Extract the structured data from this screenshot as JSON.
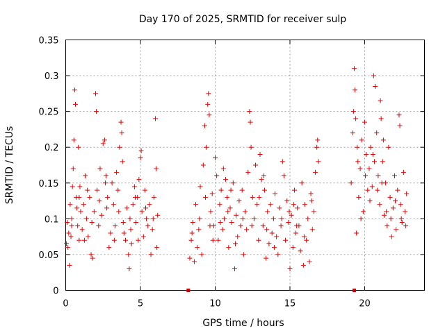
{
  "chart_data": {
    "type": "scatter",
    "title": "Day 170 of 2025, SRMTID for receiver sulp",
    "xlabel": "GPS time / hours",
    "ylabel": "SRMTID / TECUs",
    "xlim": [
      0,
      24
    ],
    "ylim": [
      0,
      0.35
    ],
    "x_ticks": [
      0,
      5,
      10,
      15,
      20
    ],
    "x_tick_labels": [
      "0",
      "5",
      "10",
      "15",
      "20"
    ],
    "y_ticks": [
      0,
      0.05,
      0.1,
      0.15,
      0.2,
      0.25,
      0.3,
      0.35
    ],
    "y_tick_labels": [
      "0",
      "0.05",
      "0.1",
      "0.15",
      "0.2",
      "0.25",
      "0.3",
      "0.35"
    ],
    "grid": true,
    "marker": "+",
    "color": "#e00000",
    "data_gap_markers_x": [
      8.2,
      19.3
    ],
    "series": [
      {
        "name": "SRMTID",
        "points": [
          [
            0.05,
            0.065
          ],
          [
            0.1,
            0.095
          ],
          [
            0.15,
            0.06
          ],
          [
            0.2,
            0.08
          ],
          [
            0.25,
            0.035
          ],
          [
            0.3,
            0.12
          ],
          [
            0.35,
            0.075
          ],
          [
            0.4,
            0.1
          ],
          [
            0.45,
            0.145
          ],
          [
            0.5,
            0.17
          ],
          [
            0.55,
            0.21
          ],
          [
            0.6,
            0.28
          ],
          [
            0.65,
            0.26
          ],
          [
            0.7,
            0.13
          ],
          [
            0.75,
            0.115
          ],
          [
            0.8,
            0.09
          ],
          [
            0.85,
            0.2
          ],
          [
            0.9,
            0.07
          ],
          [
            0.95,
            0.145
          ],
          [
            1.0,
            0.11
          ],
          [
            1.1,
            0.085
          ],
          [
            1.2,
            0.12
          ],
          [
            1.3,
            0.16
          ],
          [
            1.4,
            0.1
          ],
          [
            1.5,
            0.075
          ],
          [
            1.6,
            0.13
          ],
          [
            1.7,
            0.05
          ],
          [
            1.8,
            0.045
          ],
          [
            1.9,
            0.11
          ],
          [
            2.0,
            0.275
          ],
          [
            2.05,
            0.25
          ],
          [
            2.1,
            0.14
          ],
          [
            2.2,
            0.09
          ],
          [
            2.3,
            0.17
          ],
          [
            2.4,
            0.105
          ],
          [
            2.5,
            0.205
          ],
          [
            2.6,
            0.21
          ],
          [
            2.7,
            0.16
          ],
          [
            2.8,
            0.13
          ],
          [
            2.9,
            0.06
          ],
          [
            3.0,
            0.08
          ],
          [
            3.1,
            0.15
          ],
          [
            3.2,
            0.12
          ],
          [
            3.3,
            0.09
          ],
          [
            3.4,
            0.165
          ],
          [
            3.5,
            0.14
          ],
          [
            3.6,
            0.2
          ],
          [
            3.7,
            0.235
          ],
          [
            3.75,
            0.22
          ],
          [
            3.8,
            0.18
          ],
          [
            3.9,
            0.08
          ],
          [
            4.0,
            0.07
          ],
          [
            4.1,
            0.115
          ],
          [
            4.2,
            0.05
          ],
          [
            4.25,
            0.03
          ],
          [
            4.3,
            0.1
          ],
          [
            4.4,
            0.065
          ],
          [
            4.5,
            0.12
          ],
          [
            4.6,
            0.145
          ],
          [
            4.7,
            0.095
          ],
          [
            4.8,
            0.13
          ],
          [
            4.9,
            0.155
          ],
          [
            5.0,
            0.185
          ],
          [
            5.05,
            0.195
          ],
          [
            5.1,
            0.11
          ],
          [
            5.2,
            0.075
          ],
          [
            5.3,
            0.14
          ],
          [
            5.4,
            0.1
          ],
          [
            5.5,
            0.09
          ],
          [
            5.6,
            0.12
          ],
          [
            5.7,
            0.05
          ],
          [
            5.8,
            0.085
          ],
          [
            5.9,
            0.13
          ],
          [
            6.0,
            0.24
          ],
          [
            6.05,
            0.17
          ],
          [
            6.1,
            0.06
          ],
          [
            6.15,
            0.105
          ],
          [
            0.4,
            0.09
          ],
          [
            0.9,
            0.13
          ],
          [
            1.25,
            0.07
          ],
          [
            1.75,
            0.095
          ],
          [
            2.25,
            0.125
          ],
          [
            2.75,
            0.115
          ],
          [
            3.25,
            0.07
          ],
          [
            3.85,
            0.095
          ],
          [
            4.35,
            0.085
          ],
          [
            4.85,
            0.07
          ],
          [
            5.35,
            0.115
          ],
          [
            5.85,
            0.1
          ],
          [
            1.45,
            0.14
          ],
          [
            2.65,
            0.15
          ],
          [
            3.55,
            0.11
          ],
          [
            4.65,
            0.13
          ],
          [
            8.3,
            0.045
          ],
          [
            8.4,
            0.07
          ],
          [
            8.5,
            0.095
          ],
          [
            8.6,
            0.04
          ],
          [
            8.7,
            0.12
          ],
          [
            8.8,
            0.06
          ],
          [
            8.9,
            0.085
          ],
          [
            9.0,
            0.145
          ],
          [
            9.1,
            0.05
          ],
          [
            9.2,
            0.175
          ],
          [
            9.3,
            0.23
          ],
          [
            9.4,
            0.2
          ],
          [
            9.5,
            0.26
          ],
          [
            9.55,
            0.275
          ],
          [
            9.6,
            0.245
          ],
          [
            9.7,
            0.11
          ],
          [
            9.8,
            0.135
          ],
          [
            9.9,
            0.09
          ],
          [
            10.0,
            0.185
          ],
          [
            10.1,
            0.16
          ],
          [
            10.2,
            0.07
          ],
          [
            10.3,
            0.12
          ],
          [
            10.4,
            0.14
          ],
          [
            10.5,
            0.085
          ],
          [
            10.6,
            0.1
          ],
          [
            10.7,
            0.155
          ],
          [
            10.8,
            0.13
          ],
          [
            10.9,
            0.06
          ],
          [
            11.0,
            0.115
          ],
          [
            11.1,
            0.095
          ],
          [
            11.2,
            0.15
          ],
          [
            11.3,
            0.03
          ],
          [
            11.4,
            0.105
          ],
          [
            11.5,
            0.075
          ],
          [
            11.6,
            0.125
          ],
          [
            11.7,
            0.09
          ],
          [
            11.8,
            0.14
          ],
          [
            11.9,
            0.05
          ],
          [
            12.0,
            0.11
          ],
          [
            12.1,
            0.085
          ],
          [
            12.2,
            0.165
          ],
          [
            12.3,
            0.25
          ],
          [
            12.35,
            0.235
          ],
          [
            12.4,
            0.2
          ],
          [
            12.5,
            0.13
          ],
          [
            12.6,
            0.1
          ],
          [
            12.7,
            0.175
          ],
          [
            12.8,
            0.12
          ],
          [
            12.9,
            0.07
          ],
          [
            13.0,
            0.19
          ],
          [
            13.1,
            0.155
          ],
          [
            13.2,
            0.09
          ],
          [
            13.3,
            0.14
          ],
          [
            13.4,
            0.045
          ],
          [
            13.5,
            0.11
          ],
          [
            13.6,
            0.065
          ],
          [
            13.7,
            0.12
          ],
          [
            13.8,
            0.08
          ],
          [
            13.9,
            0.1
          ],
          [
            14.0,
            0.135
          ],
          [
            14.1,
            0.075
          ],
          [
            14.2,
            0.05
          ],
          [
            14.3,
            0.115
          ],
          [
            14.4,
            0.09
          ],
          [
            14.5,
            0.18
          ],
          [
            14.6,
            0.16
          ],
          [
            14.7,
            0.07
          ],
          [
            14.8,
            0.125
          ],
          [
            14.9,
            0.095
          ],
          [
            15.0,
            0.03
          ],
          [
            15.1,
            0.105
          ],
          [
            15.2,
            0.06
          ],
          [
            15.3,
            0.14
          ],
          [
            15.4,
            0.08
          ],
          [
            15.5,
            0.115
          ],
          [
            15.6,
            0.09
          ],
          [
            15.7,
            0.055
          ],
          [
            15.8,
            0.15
          ],
          [
            15.9,
            0.035
          ],
          [
            16.0,
            0.12
          ],
          [
            16.1,
            0.07
          ],
          [
            16.2,
            0.1
          ],
          [
            16.3,
            0.04
          ],
          [
            16.4,
            0.135
          ],
          [
            16.5,
            0.085
          ],
          [
            16.6,
            0.11
          ],
          [
            16.7,
            0.165
          ],
          [
            16.8,
            0.2
          ],
          [
            16.85,
            0.21
          ],
          [
            16.9,
            0.18
          ],
          [
            8.45,
            0.08
          ],
          [
            8.95,
            0.1
          ],
          [
            9.35,
            0.13
          ],
          [
            9.85,
            0.07
          ],
          [
            10.35,
            0.095
          ],
          [
            10.85,
            0.11
          ],
          [
            11.35,
            0.065
          ],
          [
            11.85,
            0.1
          ],
          [
            12.45,
            0.09
          ],
          [
            12.95,
            0.13
          ],
          [
            13.45,
            0.085
          ],
          [
            13.95,
            0.06
          ],
          [
            14.45,
            0.1
          ],
          [
            14.95,
            0.11
          ],
          [
            15.45,
            0.09
          ],
          [
            15.95,
            0.075
          ],
          [
            16.45,
            0.125
          ],
          [
            9.65,
            0.09
          ],
          [
            11.05,
            0.14
          ],
          [
            13.25,
            0.16
          ],
          [
            15.25,
            0.12
          ],
          [
            10.55,
            0.17
          ],
          [
            19.1,
            0.15
          ],
          [
            19.2,
            0.22
          ],
          [
            19.25,
            0.25
          ],
          [
            19.3,
            0.31
          ],
          [
            19.35,
            0.28
          ],
          [
            19.4,
            0.24
          ],
          [
            19.45,
            0.08
          ],
          [
            19.5,
            0.2
          ],
          [
            19.6,
            0.13
          ],
          [
            19.7,
            0.17
          ],
          [
            19.8,
            0.21
          ],
          [
            19.9,
            0.11
          ],
          [
            20.0,
            0.235
          ],
          [
            20.1,
            0.19
          ],
          [
            20.2,
            0.14
          ],
          [
            20.3,
            0.17
          ],
          [
            20.4,
            0.2
          ],
          [
            20.5,
            0.145
          ],
          [
            20.6,
            0.3
          ],
          [
            20.7,
            0.285
          ],
          [
            20.8,
            0.22
          ],
          [
            20.9,
            0.16
          ],
          [
            21.0,
            0.12
          ],
          [
            21.05,
            0.265
          ],
          [
            21.1,
            0.24
          ],
          [
            21.2,
            0.18
          ],
          [
            21.3,
            0.105
          ],
          [
            21.4,
            0.15
          ],
          [
            21.5,
            0.09
          ],
          [
            21.6,
            0.2
          ],
          [
            21.7,
            0.13
          ],
          [
            21.8,
            0.075
          ],
          [
            21.9,
            0.115
          ],
          [
            22.0,
            0.16
          ],
          [
            22.1,
            0.085
          ],
          [
            22.2,
            0.14
          ],
          [
            22.3,
            0.245
          ],
          [
            22.35,
            0.23
          ],
          [
            22.4,
            0.12
          ],
          [
            22.5,
            0.095
          ],
          [
            22.6,
            0.165
          ],
          [
            22.7,
            0.11
          ],
          [
            22.8,
            0.135
          ],
          [
            19.55,
            0.18
          ],
          [
            19.75,
            0.1
          ],
          [
            20.05,
            0.16
          ],
          [
            20.35,
            0.125
          ],
          [
            20.55,
            0.19
          ],
          [
            20.85,
            0.14
          ],
          [
            21.15,
            0.15
          ],
          [
            21.45,
            0.11
          ],
          [
            21.75,
            0.1
          ],
          [
            22.05,
            0.125
          ],
          [
            22.45,
            0.1
          ],
          [
            22.75,
            0.09
          ],
          [
            20.65,
            0.18
          ],
          [
            21.25,
            0.21
          ]
        ]
      }
    ]
  }
}
